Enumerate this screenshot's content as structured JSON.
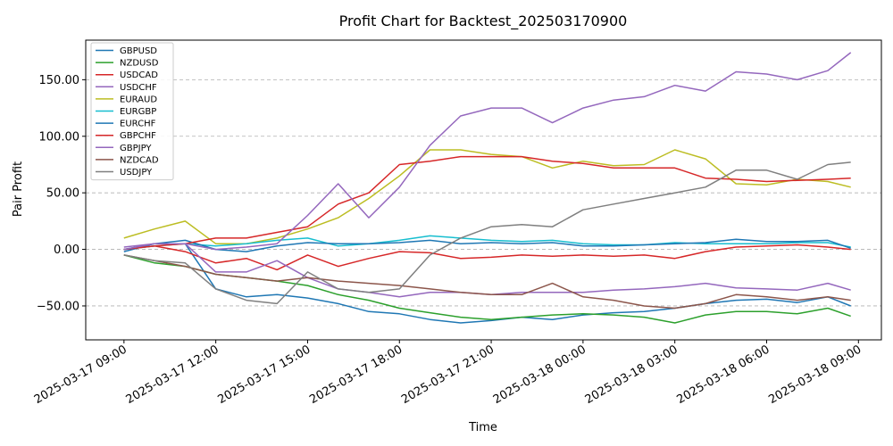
{
  "chart_data": {
    "type": "line",
    "title": "Profit Chart for Backtest_202503170900",
    "xlabel": "Time",
    "ylabel": "Pair Profit",
    "x": [
      "2025-03-17 09:00",
      "2025-03-17 10:00",
      "2025-03-17 11:00",
      "2025-03-17 12:00",
      "2025-03-17 13:00",
      "2025-03-17 14:00",
      "2025-03-17 15:00",
      "2025-03-17 16:00",
      "2025-03-17 17:00",
      "2025-03-17 18:00",
      "2025-03-17 19:00",
      "2025-03-17 20:00",
      "2025-03-17 21:00",
      "2025-03-17 22:00",
      "2025-03-17 23:00",
      "2025-03-18 00:00",
      "2025-03-18 01:00",
      "2025-03-18 02:00",
      "2025-03-18 03:00",
      "2025-03-18 04:00",
      "2025-03-18 05:00",
      "2025-03-18 06:00",
      "2025-03-18 07:00",
      "2025-03-18 08:00",
      "2025-03-18 08:45"
    ],
    "xlim": [
      "2025-03-17 07:45",
      "2025-03-18 09:45"
    ],
    "x_ticks": [
      "2025-03-17 09:00",
      "2025-03-17 12:00",
      "2025-03-17 15:00",
      "2025-03-17 18:00",
      "2025-03-17 21:00",
      "2025-03-18 00:00",
      "2025-03-18 03:00",
      "2025-03-18 06:00",
      "2025-03-18 09:00"
    ],
    "x_tick_labels": [
      "2025-03-17 09:00",
      "2025-03-17 12:00",
      "2025-03-17 15:00",
      "2025-03-17 18:00",
      "2025-03-17 21:00",
      "2025-03-18 00:00",
      "2025-03-18 03:00",
      "2025-03-18 06:00",
      "2025-03-18 09:00"
    ],
    "ylim": [
      -80,
      185
    ],
    "y_ticks": [
      -50,
      0,
      50,
      100,
      150
    ],
    "y_tick_labels": [
      "−50.00",
      "0.00",
      "50.00",
      "100.00",
      "150.00"
    ],
    "grid": "horizontal dashed",
    "legend_position": "top-left",
    "series": [
      {
        "name": "GBPUSD",
        "color": "#1f77b4",
        "values": [
          0,
          5,
          5,
          -35,
          -42,
          -40,
          -43,
          -48,
          -55,
          -57,
          -62,
          -65,
          -63,
          -60,
          -62,
          -58,
          -56,
          -55,
          -52,
          -48,
          -45,
          -44,
          -47,
          -42,
          -50
        ]
      },
      {
        "name": "NZDUSD",
        "color": "#2ca02c",
        "values": [
          -5,
          -12,
          -15,
          -22,
          -25,
          -28,
          -32,
          -40,
          -45,
          -52,
          -56,
          -60,
          -62,
          -60,
          -58,
          -57,
          -58,
          -60,
          -65,
          -58,
          -55,
          -55,
          -57,
          -52,
          -59
        ]
      },
      {
        "name": "USDCAD",
        "color": "#d62728",
        "values": [
          0,
          3,
          -2,
          -12,
          -8,
          -18,
          -5,
          -15,
          -8,
          -2,
          -3,
          -8,
          -7,
          -5,
          -6,
          -5,
          -6,
          -5,
          -8,
          -2,
          2,
          3,
          4,
          2,
          0
        ]
      },
      {
        "name": "USDCHF",
        "color": "#9467bd",
        "values": [
          2,
          5,
          5,
          -20,
          -20,
          -10,
          -25,
          -35,
          -38,
          -42,
          -38,
          -38,
          -40,
          -38,
          -38,
          -38,
          -36,
          -35,
          -33,
          -30,
          -34,
          -35,
          -36,
          -30,
          -36
        ]
      },
      {
        "name": "EURAUD",
        "color": "#bcbd22",
        "values": [
          10,
          18,
          25,
          5,
          5,
          10,
          18,
          28,
          45,
          65,
          88,
          88,
          84,
          82,
          72,
          78,
          74,
          75,
          88,
          80,
          58,
          57,
          62,
          60,
          55
        ]
      },
      {
        "name": "EURGBP",
        "color": "#17becf",
        "values": [
          0,
          3,
          5,
          3,
          5,
          8,
          10,
          3,
          5,
          8,
          12,
          10,
          8,
          7,
          8,
          5,
          4,
          4,
          6,
          5,
          5,
          5,
          6,
          6,
          2
        ]
      },
      {
        "name": "EURCHF",
        "color": "#1f77b4",
        "values": [
          -2,
          5,
          8,
          0,
          -2,
          3,
          6,
          5,
          5,
          6,
          8,
          5,
          6,
          5,
          6,
          3,
          3,
          4,
          5,
          6,
          9,
          7,
          7,
          8,
          1
        ]
      },
      {
        "name": "GBPCHF",
        "color": "#d62728",
        "values": [
          0,
          3,
          5,
          10,
          10,
          15,
          20,
          40,
          50,
          75,
          78,
          82,
          82,
          82,
          78,
          76,
          72,
          72,
          72,
          63,
          62,
          60,
          61,
          62,
          63
        ]
      },
      {
        "name": "GBPJPY",
        "color": "#9467bd",
        "values": [
          0,
          5,
          5,
          0,
          2,
          5,
          30,
          58,
          28,
          55,
          92,
          118,
          125,
          125,
          112,
          125,
          132,
          135,
          145,
          140,
          157,
          155,
          150,
          158,
          174
        ]
      },
      {
        "name": "NZDCAD",
        "color": "#8c564b",
        "values": [
          -5,
          -10,
          -15,
          -22,
          -25,
          -28,
          -25,
          -28,
          -30,
          -32,
          -35,
          -38,
          -40,
          -40,
          -30,
          -42,
          -45,
          -50,
          -52,
          -48,
          -40,
          -42,
          -45,
          -42,
          -45
        ]
      },
      {
        "name": "USDJPY",
        "color": "#7f7f7f",
        "values": [
          -5,
          -10,
          -12,
          -35,
          -45,
          -48,
          -20,
          -35,
          -38,
          -35,
          -5,
          10,
          20,
          22,
          20,
          35,
          40,
          45,
          50,
          55,
          70,
          70,
          62,
          75,
          77
        ]
      }
    ]
  }
}
